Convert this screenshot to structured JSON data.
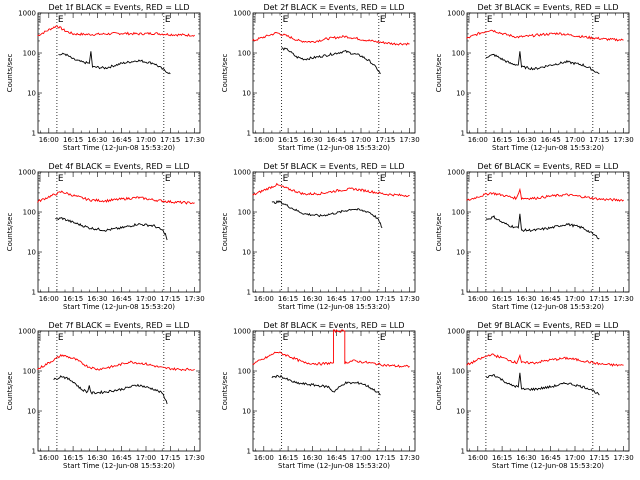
{
  "chart_data": [
    {
      "type": "line",
      "title": "Det 1f BLACK = Events, RED = LLD",
      "ylabel": "Counts/sec",
      "xlabel": "Start Time (12-Jun-08 15:53:20)",
      "x_ticks": [
        "16:00",
        "16:15",
        "16:30",
        "16:45",
        "17:00",
        "17:15",
        "17:30"
      ],
      "y_ticks": [
        "1",
        "10",
        "100",
        "1000"
      ],
      "x_range": [
        "15:53:20",
        "17:33:20"
      ],
      "y_range": [
        1,
        1000
      ],
      "y_scale": "log",
      "vlines": [
        "16:05",
        "17:11"
      ],
      "markers": [
        "E",
        "E"
      ],
      "series": [
        {
          "color": "#ff0000",
          "x": [
            "15:53",
            "16:00",
            "16:05",
            "16:10",
            "16:15",
            "16:25",
            "16:35",
            "16:45",
            "16:55",
            "17:05",
            "17:15",
            "17:25",
            "17:30"
          ],
          "y": [
            270,
            380,
            480,
            360,
            300,
            290,
            300,
            310,
            300,
            310,
            290,
            280,
            280
          ]
        },
        {
          "color": "#000000",
          "x": [
            "16:06",
            "16:10",
            "16:15",
            "16:20",
            "16:25",
            "16:26",
            "16:27",
            "16:35",
            "16:45",
            "16:55",
            "17:05",
            "17:10",
            "17:15"
          ],
          "y": [
            90,
            95,
            70,
            60,
            55,
            110,
            45,
            42,
            55,
            65,
            55,
            40,
            30
          ]
        }
      ]
    },
    {
      "type": "line",
      "title": "Det 2f BLACK = Events, RED = LLD",
      "ylabel": "Counts/sec",
      "xlabel": "Start Time (12-Jun-08 15:53:20)",
      "x_ticks": [
        "16:00",
        "16:15",
        "16:30",
        "16:45",
        "17:00",
        "17:15",
        "17:30"
      ],
      "y_ticks": [
        "1",
        "10",
        "100",
        "1000"
      ],
      "x_range": [
        "15:53:20",
        "17:33:20"
      ],
      "y_range": [
        1,
        1000
      ],
      "y_scale": "log",
      "vlines": [
        "16:11",
        "17:11"
      ],
      "markers": [
        "E",
        "E"
      ],
      "series": [
        {
          "color": "#ff0000",
          "x": [
            "15:53",
            "16:00",
            "16:08",
            "16:15",
            "16:22",
            "16:30",
            "16:40",
            "16:50",
            "17:00",
            "17:10",
            "17:20",
            "17:30"
          ],
          "y": [
            200,
            250,
            320,
            260,
            200,
            190,
            230,
            260,
            220,
            190,
            170,
            170
          ]
        },
        {
          "color": "#000000",
          "x": [
            "16:11",
            "16:15",
            "16:20",
            "16:25",
            "16:30",
            "16:40",
            "16:50",
            "17:00",
            "17:06",
            "17:10",
            "17:12"
          ],
          "y": [
            130,
            120,
            80,
            70,
            75,
            90,
            110,
            85,
            60,
            40,
            30
          ]
        }
      ]
    },
    {
      "type": "line",
      "title": "Det 3f BLACK = Events, RED = LLD",
      "ylabel": "Counts/sec",
      "xlabel": "Start Time (12-Jun-08 15:53:20)",
      "x_ticks": [
        "16:00",
        "16:15",
        "16:30",
        "16:45",
        "17:00",
        "17:15",
        "17:30"
      ],
      "y_ticks": [
        "1",
        "10",
        "100",
        "1000"
      ],
      "x_range": [
        "15:53:20",
        "17:33:20"
      ],
      "y_range": [
        1,
        1000
      ],
      "y_scale": "log",
      "vlines": [
        "16:05",
        "17:11"
      ],
      "markers": [
        "E",
        "E"
      ],
      "series": [
        {
          "color": "#ff0000",
          "x": [
            "15:53",
            "16:00",
            "16:08",
            "16:16",
            "16:24",
            "16:30",
            "16:40",
            "16:50",
            "17:00",
            "17:10",
            "17:20",
            "17:30"
          ],
          "y": [
            230,
            300,
            380,
            300,
            250,
            260,
            290,
            310,
            270,
            240,
            220,
            210
          ]
        },
        {
          "color": "#000000",
          "x": [
            "16:05",
            "16:10",
            "16:15",
            "16:20",
            "16:25",
            "16:26",
            "16:27",
            "16:35",
            "16:45",
            "16:55",
            "17:05",
            "17:10",
            "17:15"
          ],
          "y": [
            80,
            90,
            70,
            55,
            50,
            110,
            45,
            40,
            50,
            60,
            50,
            40,
            30
          ]
        }
      ]
    },
    {
      "type": "line",
      "title": "Det 4f BLACK = Events, RED = LLD",
      "ylabel": "Counts/sec",
      "xlabel": "Start Time (12-Jun-08 15:53:20)",
      "x_ticks": [
        "16:00",
        "16:15",
        "16:30",
        "16:45",
        "17:00",
        "17:15",
        "17:30"
      ],
      "y_ticks": [
        "1",
        "10",
        "100",
        "1000"
      ],
      "x_range": [
        "15:53:20",
        "17:33:20"
      ],
      "y_range": [
        1,
        1000
      ],
      "y_scale": "log",
      "vlines": [
        "16:05",
        "17:11"
      ],
      "markers": [
        "E",
        "E"
      ],
      "series": [
        {
          "color": "#ff0000",
          "x": [
            "15:53",
            "16:00",
            "16:08",
            "16:15",
            "16:25",
            "16:35",
            "16:45",
            "16:55",
            "17:05",
            "17:15",
            "17:25",
            "17:30"
          ],
          "y": [
            180,
            240,
            320,
            260,
            200,
            190,
            210,
            230,
            200,
            180,
            170,
            170
          ]
        },
        {
          "color": "#000000",
          "x": [
            "16:04",
            "16:08",
            "16:15",
            "16:25",
            "16:35",
            "16:45",
            "16:55",
            "17:05",
            "17:10",
            "17:12",
            "17:13"
          ],
          "y": [
            65,
            70,
            55,
            40,
            35,
            40,
            50,
            45,
            35,
            28,
            20
          ]
        }
      ]
    },
    {
      "type": "line",
      "title": "Det 5f BLACK = Events, RED = LLD",
      "ylabel": "Counts/sec",
      "xlabel": "Start Time (12-Jun-08 15:53:20)",
      "x_ticks": [
        "16:00",
        "16:15",
        "16:30",
        "16:45",
        "17:00",
        "17:15",
        "17:30"
      ],
      "y_ticks": [
        "1",
        "10",
        "100",
        "1000"
      ],
      "x_range": [
        "15:53:20",
        "17:33:20"
      ],
      "y_range": [
        1,
        1000
      ],
      "y_scale": "log",
      "vlines": [
        "16:11",
        "17:11"
      ],
      "markers": [
        "E",
        "E"
      ],
      "series": [
        {
          "color": "#ff0000",
          "x": [
            "15:53",
            "16:00",
            "16:08",
            "16:15",
            "16:25",
            "16:35",
            "16:45",
            "16:55",
            "17:05",
            "17:15",
            "17:25",
            "17:30"
          ],
          "y": [
            260,
            350,
            480,
            380,
            280,
            290,
            340,
            380,
            330,
            280,
            260,
            260
          ]
        },
        {
          "color": "#000000",
          "x": [
            "16:05",
            "16:10",
            "16:15",
            "16:20",
            "16:25",
            "16:35",
            "16:45",
            "16:55",
            "17:05",
            "17:10",
            "17:12",
            "17:13"
          ],
          "y": [
            170,
            180,
            140,
            110,
            90,
            80,
            95,
            120,
            100,
            70,
            50,
            40
          ]
        }
      ]
    },
    {
      "type": "line",
      "title": "Det 6f BLACK = Events, RED = LLD",
      "ylabel": "Counts/sec",
      "xlabel": "Start Time (12-Jun-08 15:53:20)",
      "x_ticks": [
        "16:00",
        "16:15",
        "16:30",
        "16:45",
        "17:00",
        "17:15",
        "17:30"
      ],
      "y_ticks": [
        "1",
        "10",
        "100",
        "1000"
      ],
      "x_range": [
        "15:53:20",
        "17:33:20"
      ],
      "y_range": [
        1,
        1000
      ],
      "y_scale": "log",
      "vlines": [
        "16:05",
        "17:11"
      ],
      "markers": [
        "E",
        "E"
      ],
      "series": [
        {
          "color": "#ff0000",
          "x": [
            "15:53",
            "16:00",
            "16:08",
            "16:16",
            "16:24",
            "16:26",
            "16:27",
            "16:35",
            "16:45",
            "16:55",
            "17:05",
            "17:15",
            "17:25",
            "17:30"
          ],
          "y": [
            190,
            240,
            300,
            260,
            220,
            380,
            220,
            220,
            250,
            270,
            240,
            210,
            200,
            200
          ]
        },
        {
          "color": "#000000",
          "x": [
            "16:05",
            "16:10",
            "16:15",
            "16:20",
            "16:25",
            "16:26",
            "16:27",
            "16:35",
            "16:45",
            "16:55",
            "17:05",
            "17:10",
            "17:15"
          ],
          "y": [
            65,
            75,
            55,
            45,
            40,
            90,
            35,
            35,
            40,
            50,
            40,
            30,
            22
          ]
        }
      ]
    },
    {
      "type": "line",
      "title": "Det 7f BLACK = Events, RED = LLD",
      "ylabel": "Counts/sec",
      "xlabel": "Start Time (12-Jun-08 15:53:20)",
      "x_ticks": [
        "16:00",
        "16:15",
        "16:30",
        "16:45",
        "17:00",
        "17:15",
        "17:30"
      ],
      "y_ticks": [
        "1",
        "10",
        "100",
        "1000"
      ],
      "x_range": [
        "15:53:20",
        "17:33:20"
      ],
      "y_range": [
        1,
        1000
      ],
      "y_scale": "log",
      "vlines": [
        "16:05",
        "17:11"
      ],
      "markers": [
        "E",
        "E"
      ],
      "series": [
        {
          "color": "#ff0000",
          "x": [
            "15:53",
            "16:00",
            "16:08",
            "16:16",
            "16:24",
            "16:30",
            "16:40",
            "16:50",
            "17:00",
            "17:10",
            "17:20",
            "17:30"
          ],
          "y": [
            110,
            160,
            250,
            200,
            130,
            110,
            130,
            170,
            150,
            120,
            110,
            110
          ]
        },
        {
          "color": "#000000",
          "x": [
            "16:03",
            "16:08",
            "16:15",
            "16:20",
            "16:24",
            "16:25",
            "16:26",
            "16:35",
            "16:45",
            "16:55",
            "17:05",
            "17:10",
            "17:12",
            "17:13"
          ],
          "y": [
            60,
            75,
            55,
            35,
            30,
            45,
            28,
            30,
            35,
            45,
            35,
            28,
            20,
            15
          ]
        }
      ]
    },
    {
      "type": "line",
      "title": "Det 8f BLACK = Events, RED = LLD",
      "ylabel": "Counts/sec",
      "xlabel": "Start Time (12-Jun-08 15:53:20)",
      "x_ticks": [
        "16:00",
        "16:15",
        "16:30",
        "16:45",
        "17:00",
        "17:15",
        "17:30"
      ],
      "y_ticks": [
        "1",
        "10",
        "100",
        "1000"
      ],
      "x_range": [
        "15:53:20",
        "17:33:20"
      ],
      "y_range": [
        1,
        1000
      ],
      "y_scale": "log",
      "vlines": [
        "16:11",
        "17:11"
      ],
      "markers": [
        "E",
        "E"
      ],
      "series": [
        {
          "color": "#ff0000",
          "x": [
            "15:53",
            "16:00",
            "16:08",
            "16:15",
            "16:25",
            "16:35",
            "16:43",
            "16:43",
            "16:50",
            "16:50",
            "16:55",
            "17:05",
            "17:15",
            "17:25",
            "17:30"
          ],
          "y": [
            150,
            200,
            300,
            240,
            160,
            150,
            160,
            1000,
            1000,
            160,
            180,
            160,
            140,
            130,
            130
          ]
        },
        {
          "color": "#000000",
          "x": [
            "16:05",
            "16:10",
            "16:15",
            "16:20",
            "16:30",
            "16:40",
            "16:43",
            "16:50",
            "17:00",
            "17:05",
            "17:10",
            "17:12"
          ],
          "y": [
            70,
            75,
            60,
            50,
            45,
            40,
            30,
            50,
            50,
            40,
            30,
            25
          ]
        }
      ]
    },
    {
      "type": "line",
      "title": "Det 9f BLACK = Events, RED = LLD",
      "ylabel": "Counts/sec",
      "xlabel": "Start Time (12-Jun-08 15:53:20)",
      "x_ticks": [
        "16:00",
        "16:15",
        "16:30",
        "16:45",
        "17:00",
        "17:15",
        "17:30"
      ],
      "y_ticks": [
        "1",
        "10",
        "100",
        "1000"
      ],
      "x_range": [
        "15:53:20",
        "17:33:20"
      ],
      "y_range": [
        1,
        1000
      ],
      "y_scale": "log",
      "vlines": [
        "16:05",
        "17:11"
      ],
      "markers": [
        "E",
        "E"
      ],
      "series": [
        {
          "color": "#ff0000",
          "x": [
            "15:53",
            "16:00",
            "16:08",
            "16:16",
            "16:24",
            "16:26",
            "16:27",
            "16:35",
            "16:45",
            "16:55",
            "17:05",
            "17:15",
            "17:25",
            "17:30"
          ],
          "y": [
            140,
            190,
            260,
            210,
            160,
            250,
            160,
            160,
            190,
            210,
            180,
            150,
            140,
            140
          ]
        },
        {
          "color": "#000000",
          "x": [
            "16:05",
            "16:10",
            "16:15",
            "16:20",
            "16:25",
            "16:26",
            "16:27",
            "16:35",
            "16:45",
            "16:55",
            "17:05",
            "17:10",
            "17:15"
          ],
          "y": [
            70,
            80,
            60,
            45,
            40,
            90,
            35,
            35,
            40,
            50,
            40,
            35,
            25
          ]
        }
      ]
    }
  ]
}
